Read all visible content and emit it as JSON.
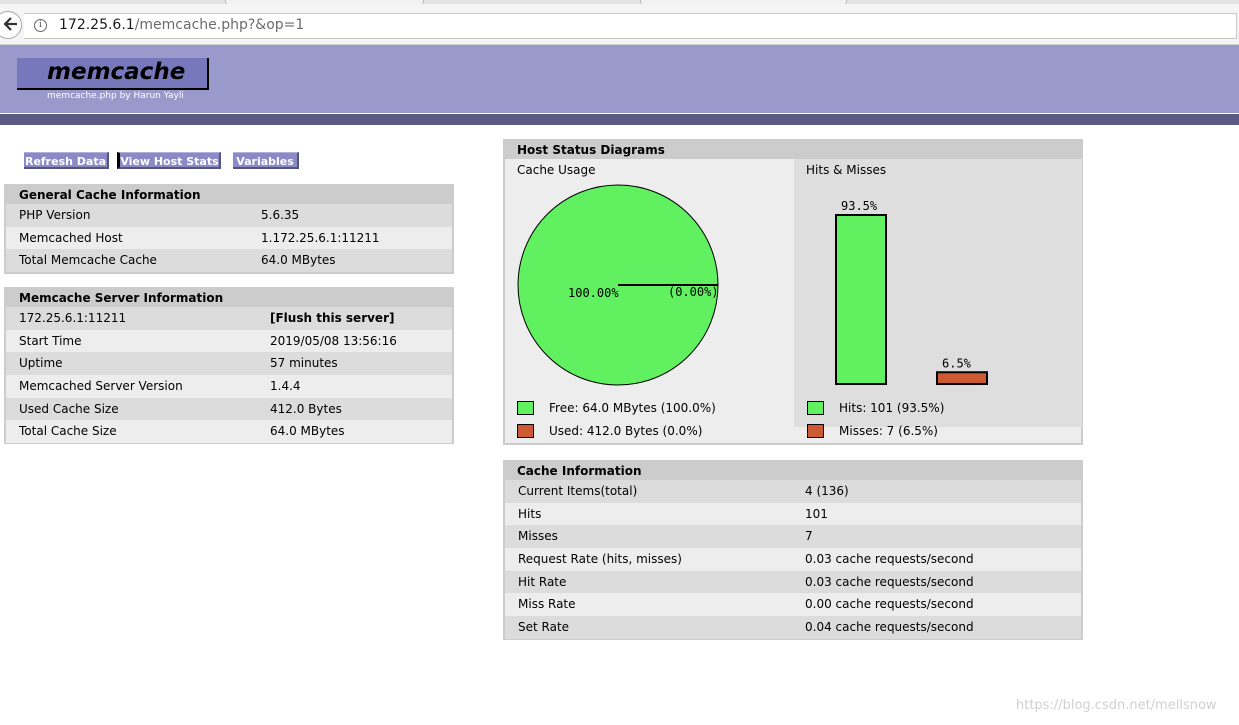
{
  "browser": {
    "url_host": "172.25.6.1",
    "url_path": "/memcache.php?&op=1"
  },
  "header": {
    "logo_title": "memcache",
    "logo_subtitle": "memcache.php by",
    "logo_author": "Harun Yayli"
  },
  "menu": {
    "refresh": "Refresh Data",
    "host_stats": "View Host Stats",
    "variables": "Variables"
  },
  "general": {
    "title": "General Cache Information",
    "rows": [
      {
        "k": "PHP Version",
        "v": "5.6.35"
      },
      {
        "k": "Memcached Host",
        "v": "1.172.25.6.1:11211"
      },
      {
        "k": "Total Memcache Cache",
        "v": "64.0 MBytes"
      }
    ]
  },
  "server": {
    "title": "Memcache Server Information",
    "host": "172.25.6.1:11211",
    "flush": "[Flush this server]",
    "rows": [
      {
        "k": "Start Time",
        "v": "2019/05/08 13:56:16"
      },
      {
        "k": "Uptime",
        "v": "57 minutes"
      },
      {
        "k": "Memcached Server Version",
        "v": "1.4.4"
      },
      {
        "k": "Used Cache Size",
        "v": "412.0 Bytes"
      },
      {
        "k": "Total Cache Size",
        "v": "64.0 MBytes"
      }
    ]
  },
  "diagrams": {
    "title": "Host Status Diagrams",
    "usage_label": "Cache Usage",
    "hits_label": "Hits & Misses",
    "pie_main": "100.00%",
    "pie_small": "(0.00%)",
    "bar_hits_label": "93.5%",
    "bar_miss_label": "6.5%",
    "legend_free": "Free: 64.0 MBytes (100.0%)",
    "legend_used": "Used: 412.0 Bytes (0.0%)",
    "legend_hits": "Hits: 101 (93.5%)",
    "legend_misses": "Misses: 7 (6.5%)",
    "colors": {
      "free": "#60f060",
      "used": "#cc5b33"
    }
  },
  "chart_data": [
    {
      "type": "pie",
      "categories": [
        "Free",
        "Used"
      ],
      "values": [
        100.0,
        0.0
      ],
      "title": "Cache Usage"
    },
    {
      "type": "bar",
      "categories": [
        "Hits",
        "Misses"
      ],
      "values": [
        93.5,
        6.5
      ],
      "title": "Hits & Misses"
    }
  ],
  "cache": {
    "title": "Cache Information",
    "rows": [
      {
        "k": "Current Items(total)",
        "v": "4 (136)"
      },
      {
        "k": "Hits",
        "v": "101"
      },
      {
        "k": "Misses",
        "v": "7"
      },
      {
        "k": "Request Rate (hits, misses)",
        "v": "0.03 cache requests/second"
      },
      {
        "k": "Hit Rate",
        "v": "0.03 cache requests/second"
      },
      {
        "k": "Miss Rate",
        "v": "0.00 cache requests/second"
      },
      {
        "k": "Set Rate",
        "v": "0.04 cache requests/second"
      }
    ]
  },
  "watermark": "https://blog.csdn.net/mellsnow"
}
